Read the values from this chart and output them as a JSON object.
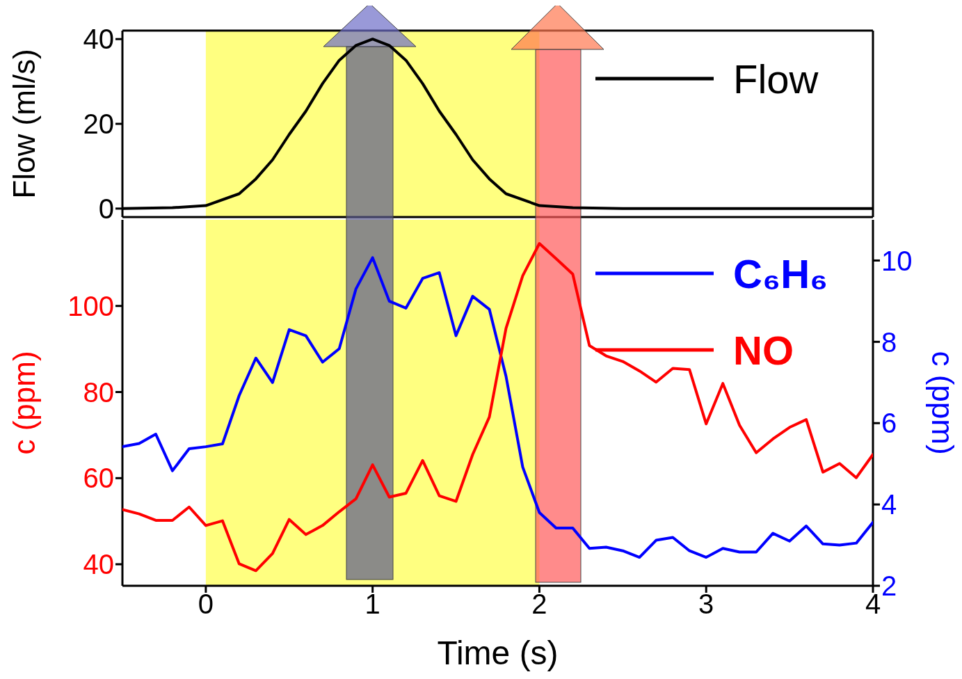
{
  "chart_data": [
    {
      "type": "line",
      "ylabel": "Flow (ml/s)",
      "xlim": [
        -0.5,
        4
      ],
      "ylim": [
        -2,
        42
      ],
      "yticks": [
        0,
        20,
        40
      ],
      "tick_labels": "y",
      "legend": "top right",
      "bands": [
        {
          "axis": "x",
          "from": 0,
          "to": 2,
          "color": "#ffff80"
        }
      ],
      "series": [
        {
          "name": "Flow",
          "color": "#000000",
          "x": [
            -0.5,
            -0.2,
            0,
            0.2,
            0.3,
            0.4,
            0.5,
            0.6,
            0.7,
            0.8,
            0.9,
            1,
            1.1,
            1.2,
            1.3,
            1.4,
            1.5,
            1.6,
            1.7,
            1.8,
            2,
            2.2,
            2.5,
            3,
            4
          ],
          "values": [
            0,
            0.2,
            0.7,
            3.5,
            7,
            11.5,
            17.5,
            23,
            29.5,
            35,
            38.5,
            40,
            38.5,
            35,
            29.5,
            23,
            17.5,
            11.5,
            7,
            3.5,
            0.7,
            0.2,
            0,
            0,
            0
          ]
        }
      ]
    },
    {
      "type": "line",
      "xlabel": "Time (s)",
      "ylabel": "c (ppm)",
      "y2label": "c (ppm)",
      "xlim": [
        -0.5,
        4
      ],
      "xticks": [
        0,
        1,
        2,
        3,
        4
      ],
      "ylim": [
        35,
        120
      ],
      "yticks": [
        40,
        60,
        80,
        100
      ],
      "y2lim": [
        2,
        11
      ],
      "y2ticks": [
        2,
        4,
        6,
        8,
        10
      ],
      "legend": "top right",
      "bands": [
        {
          "axis": "x",
          "from": 0,
          "to": 2,
          "color": "#ffff80"
        }
      ],
      "x": [
        -0.5,
        -0.4,
        -0.3,
        -0.2,
        -0.1,
        0,
        0.1,
        0.2,
        0.3,
        0.4,
        0.5,
        0.6,
        0.7,
        0.8,
        0.9,
        1,
        1.1,
        1.2,
        1.3,
        1.4,
        1.5,
        1.6,
        1.7,
        1.8,
        1.9,
        2,
        2.1,
        2.2,
        2.3,
        2.4,
        2.5,
        2.6,
        2.7,
        2.8,
        2.9,
        3,
        3.1,
        3.2,
        3.3,
        3.4,
        3.5,
        3.6,
        3.7,
        3.8,
        3.9,
        4
      ],
      "series": [
        {
          "name": "C₆H₆",
          "color": "#0000ff",
          "axis": "y2",
          "values": [
            5.42,
            5.5,
            5.73,
            4.83,
            5.37,
            5.42,
            5.49,
            6.68,
            7.6,
            7.0,
            8.3,
            8.15,
            7.5,
            7.83,
            9.3,
            10.07,
            9.0,
            8.83,
            9.56,
            9.7,
            8.15,
            9.12,
            8.8,
            7.15,
            4.92,
            3.8,
            3.42,
            3.42,
            2.92,
            2.95,
            2.86,
            2.7,
            3.12,
            3.19,
            2.86,
            2.7,
            2.92,
            2.83,
            2.83,
            3.29,
            3.1,
            3.47,
            3.03,
            3.0,
            3.05,
            3.56
          ]
        },
        {
          "name": "NO",
          "color": "#ff0000",
          "values": [
            52.7,
            51.7,
            50.2,
            50.2,
            53.3,
            49.0,
            50.1,
            40.1,
            38.5,
            42.5,
            50.4,
            46.9,
            49.0,
            52.2,
            55.2,
            63.1,
            55.6,
            56.5,
            64.1,
            55.9,
            54.6,
            65.5,
            74.2,
            94.8,
            107,
            114.5,
            111,
            107.4,
            90.8,
            88.4,
            87.1,
            84.9,
            82.3,
            85.5,
            85.2,
            72.6,
            82,
            72.3,
            65.9,
            69.1,
            71.8,
            73.6,
            61.4,
            63.4,
            60.1,
            65.5
          ]
        }
      ]
    }
  ]
}
